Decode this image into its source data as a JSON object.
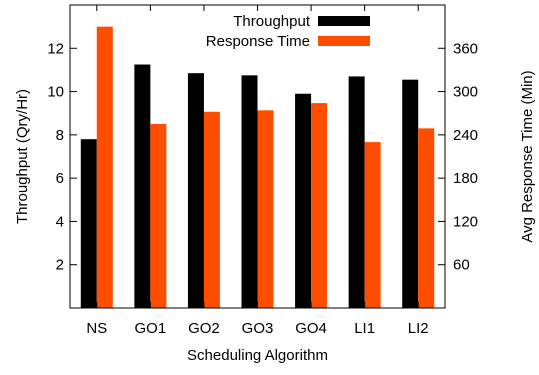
{
  "chart_data": {
    "type": "bar",
    "title": "",
    "xlabel": "Scheduling Algorithm",
    "ylabel": "Throughput (Qry/Hr)",
    "y2label": "Avg Response Time (Min)",
    "categories": [
      "NS",
      "GO1",
      "GO2",
      "GO3",
      "GO4",
      "LI1",
      "LI2"
    ],
    "ylim": [
      0,
      14
    ],
    "y2lim": [
      0,
      420
    ],
    "yticks": [
      2,
      4,
      6,
      8,
      10,
      12
    ],
    "y2ticks": [
      60,
      120,
      180,
      240,
      300,
      360
    ],
    "series": [
      {
        "name": "Throughput",
        "axis": "left",
        "color": "#000000",
        "values": [
          7.8,
          11.25,
          10.85,
          10.75,
          9.9,
          10.7,
          10.55
        ]
      },
      {
        "name": "Response Time",
        "axis": "right",
        "color": "#ff4d00",
        "values": [
          390,
          255,
          272,
          274,
          284,
          230,
          249
        ]
      }
    ],
    "legend_position": "top-right",
    "grid": false
  }
}
